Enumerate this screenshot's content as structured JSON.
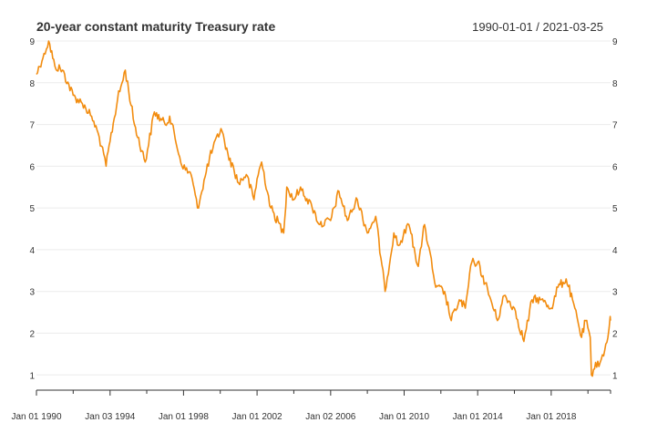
{
  "chart_data": {
    "type": "line",
    "title": "20-year constant maturity Treasury rate",
    "date_range": "1990-01-01 / 2021-03-25",
    "xlabel": "",
    "ylabel": "",
    "ylim": [
      0.7,
      9.0
    ],
    "yticks": [
      1,
      2,
      3,
      4,
      5,
      6,
      7,
      8,
      9
    ],
    "xlim": [
      "1990-01-01",
      "2021-03-25"
    ],
    "xtick_labels": [
      {
        "date": "1990-01-01",
        "label": "Jan 01 1990"
      },
      {
        "date": "1994-01-03",
        "label": "Jan 03 1994"
      },
      {
        "date": "1998-01-01",
        "label": "Jan 01 1998"
      },
      {
        "date": "2002-01-01",
        "label": "Jan 01 2002"
      },
      {
        "date": "2006-01-02",
        "label": "Jan 02 2006"
      },
      {
        "date": "2010-01-01",
        "label": "Jan 01 2010"
      },
      {
        "date": "2014-01-01",
        "label": "Jan 01 2014"
      },
      {
        "date": "2018-01-01",
        "label": "Jan 01 2018"
      }
    ],
    "minor_tick_dates": [
      "1992-01-01",
      "1996-01-01",
      "2000-01-01",
      "2004-01-01",
      "2008-01-01",
      "2012-01-01",
      "2016-01-01",
      "2020-01-01",
      "2021-03-25"
    ],
    "grid": true,
    "line_color": "#f28c0f",
    "series": [
      {
        "x": [
          "1990-01-01",
          "1990-06-01",
          "1990-09-01",
          "1991-01-01",
          "1991-06-01",
          "1992-01-01",
          "1992-07-01",
          "1993-01-01",
          "1993-06-01",
          "1993-10-15",
          "1994-01-03",
          "1994-06-01",
          "1994-11-01",
          "1995-05-01",
          "1995-12-01",
          "1996-06-01",
          "1997-01-01",
          "1997-04-01",
          "1997-12-01",
          "1998-06-01",
          "1998-10-05",
          "1999-01-01",
          "1999-06-01",
          "2000-01-15",
          "2000-06-01",
          "2001-01-01",
          "2001-06-01",
          "2001-11-01",
          "2002-01-01",
          "2002-04-01",
          "2002-10-01",
          "2003-06-13",
          "2003-08-15",
          "2004-01-01",
          "2004-05-14",
          "2005-01-01",
          "2005-06-01",
          "2006-01-02",
          "2006-06-15",
          "2006-12-01",
          "2007-06-15",
          "2008-01-01",
          "2008-06-15",
          "2008-12-18",
          "2009-06-10",
          "2009-09-15",
          "2010-04-05",
          "2010-10-08",
          "2011-01-01",
          "2011-02-10",
          "2011-09-22",
          "2012-03-15",
          "2012-07-25",
          "2013-01-01",
          "2013-05-01",
          "2013-09-05",
          "2014-01-01",
          "2014-06-01",
          "2015-01-30",
          "2015-06-10",
          "2016-01-01",
          "2016-07-08",
          "2016-12-15",
          "2017-06-01",
          "2018-01-01",
          "2018-05-15",
          "2018-10-25",
          "2019-03-01",
          "2019-08-28",
          "2019-11-15",
          "2020-02-15",
          "2020-03-09",
          "2020-06-01",
          "2020-08-05",
          "2020-12-01",
          "2021-02-01",
          "2021-03-18",
          "2021-03-25"
        ],
        "y": [
          8.2,
          8.7,
          9.0,
          8.4,
          8.3,
          7.7,
          7.5,
          7.2,
          6.7,
          6.0,
          6.6,
          7.6,
          8.3,
          7.0,
          6.1,
          7.3,
          7.0,
          7.2,
          6.0,
          5.8,
          5.0,
          5.4,
          6.2,
          6.9,
          6.3,
          5.6,
          5.8,
          5.2,
          5.7,
          6.1,
          5.0,
          4.4,
          5.5,
          5.2,
          5.5,
          5.0,
          4.6,
          4.7,
          5.4,
          4.7,
          5.2,
          4.4,
          4.8,
          3.0,
          4.4,
          4.1,
          4.6,
          3.6,
          4.3,
          4.6,
          3.1,
          3.0,
          2.3,
          2.8,
          2.6,
          3.7,
          3.7,
          3.2,
          2.3,
          2.9,
          2.6,
          1.8,
          2.8,
          2.8,
          2.6,
          3.1,
          3.3,
          2.8,
          1.9,
          2.3,
          1.9,
          1.0,
          1.3,
          1.2,
          1.6,
          1.9,
          2.4,
          2.3
        ]
      }
    ]
  }
}
